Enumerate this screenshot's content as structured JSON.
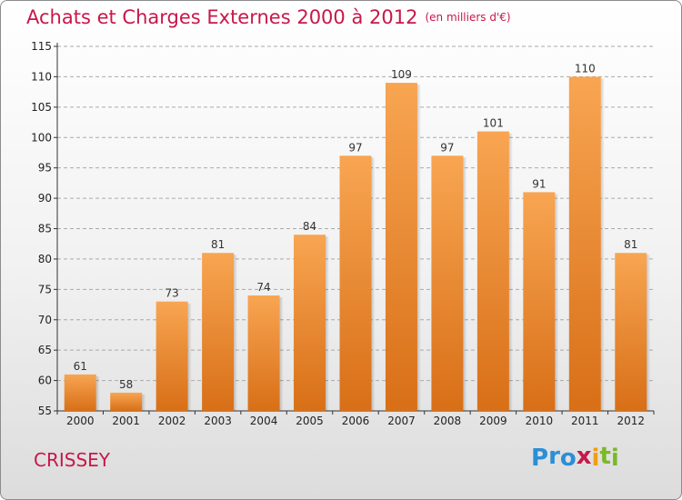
{
  "header": {
    "title": "Achats et Charges Externes 2000 à 2012",
    "subtitle": "(en milliers d'€)"
  },
  "footer": {
    "place": "CRISSEY",
    "logo_letters": [
      "P",
      "r",
      "o",
      "x",
      "i",
      "t",
      "i"
    ],
    "logo_colors": [
      "#2b8fd6",
      "#2b8fd6",
      "#2b8fd6",
      "#c8174a",
      "#f39c12",
      "#7bb928",
      "#7bb928"
    ]
  },
  "colors": {
    "bar_top": "#f8a552",
    "bar_bottom": "#d86f17",
    "axis": "#333333",
    "grid": "#aaaaaa"
  },
  "chart_data": {
    "type": "bar",
    "title": "Achats et Charges Externes 2000 à 2012",
    "subtitle": "(en milliers d'€)",
    "categories": [
      "2000",
      "2001",
      "2002",
      "2003",
      "2004",
      "2005",
      "2006",
      "2007",
      "2008",
      "2009",
      "2010",
      "2011",
      "2012"
    ],
    "values": [
      61,
      58,
      73,
      81,
      74,
      84,
      97,
      109,
      97,
      101,
      91,
      110,
      81
    ],
    "ylim": [
      55,
      115
    ],
    "yticks": [
      55,
      60,
      65,
      70,
      75,
      80,
      85,
      90,
      95,
      100,
      105,
      110,
      115
    ],
    "grid": "horizontal dashed",
    "data_labels": true
  }
}
